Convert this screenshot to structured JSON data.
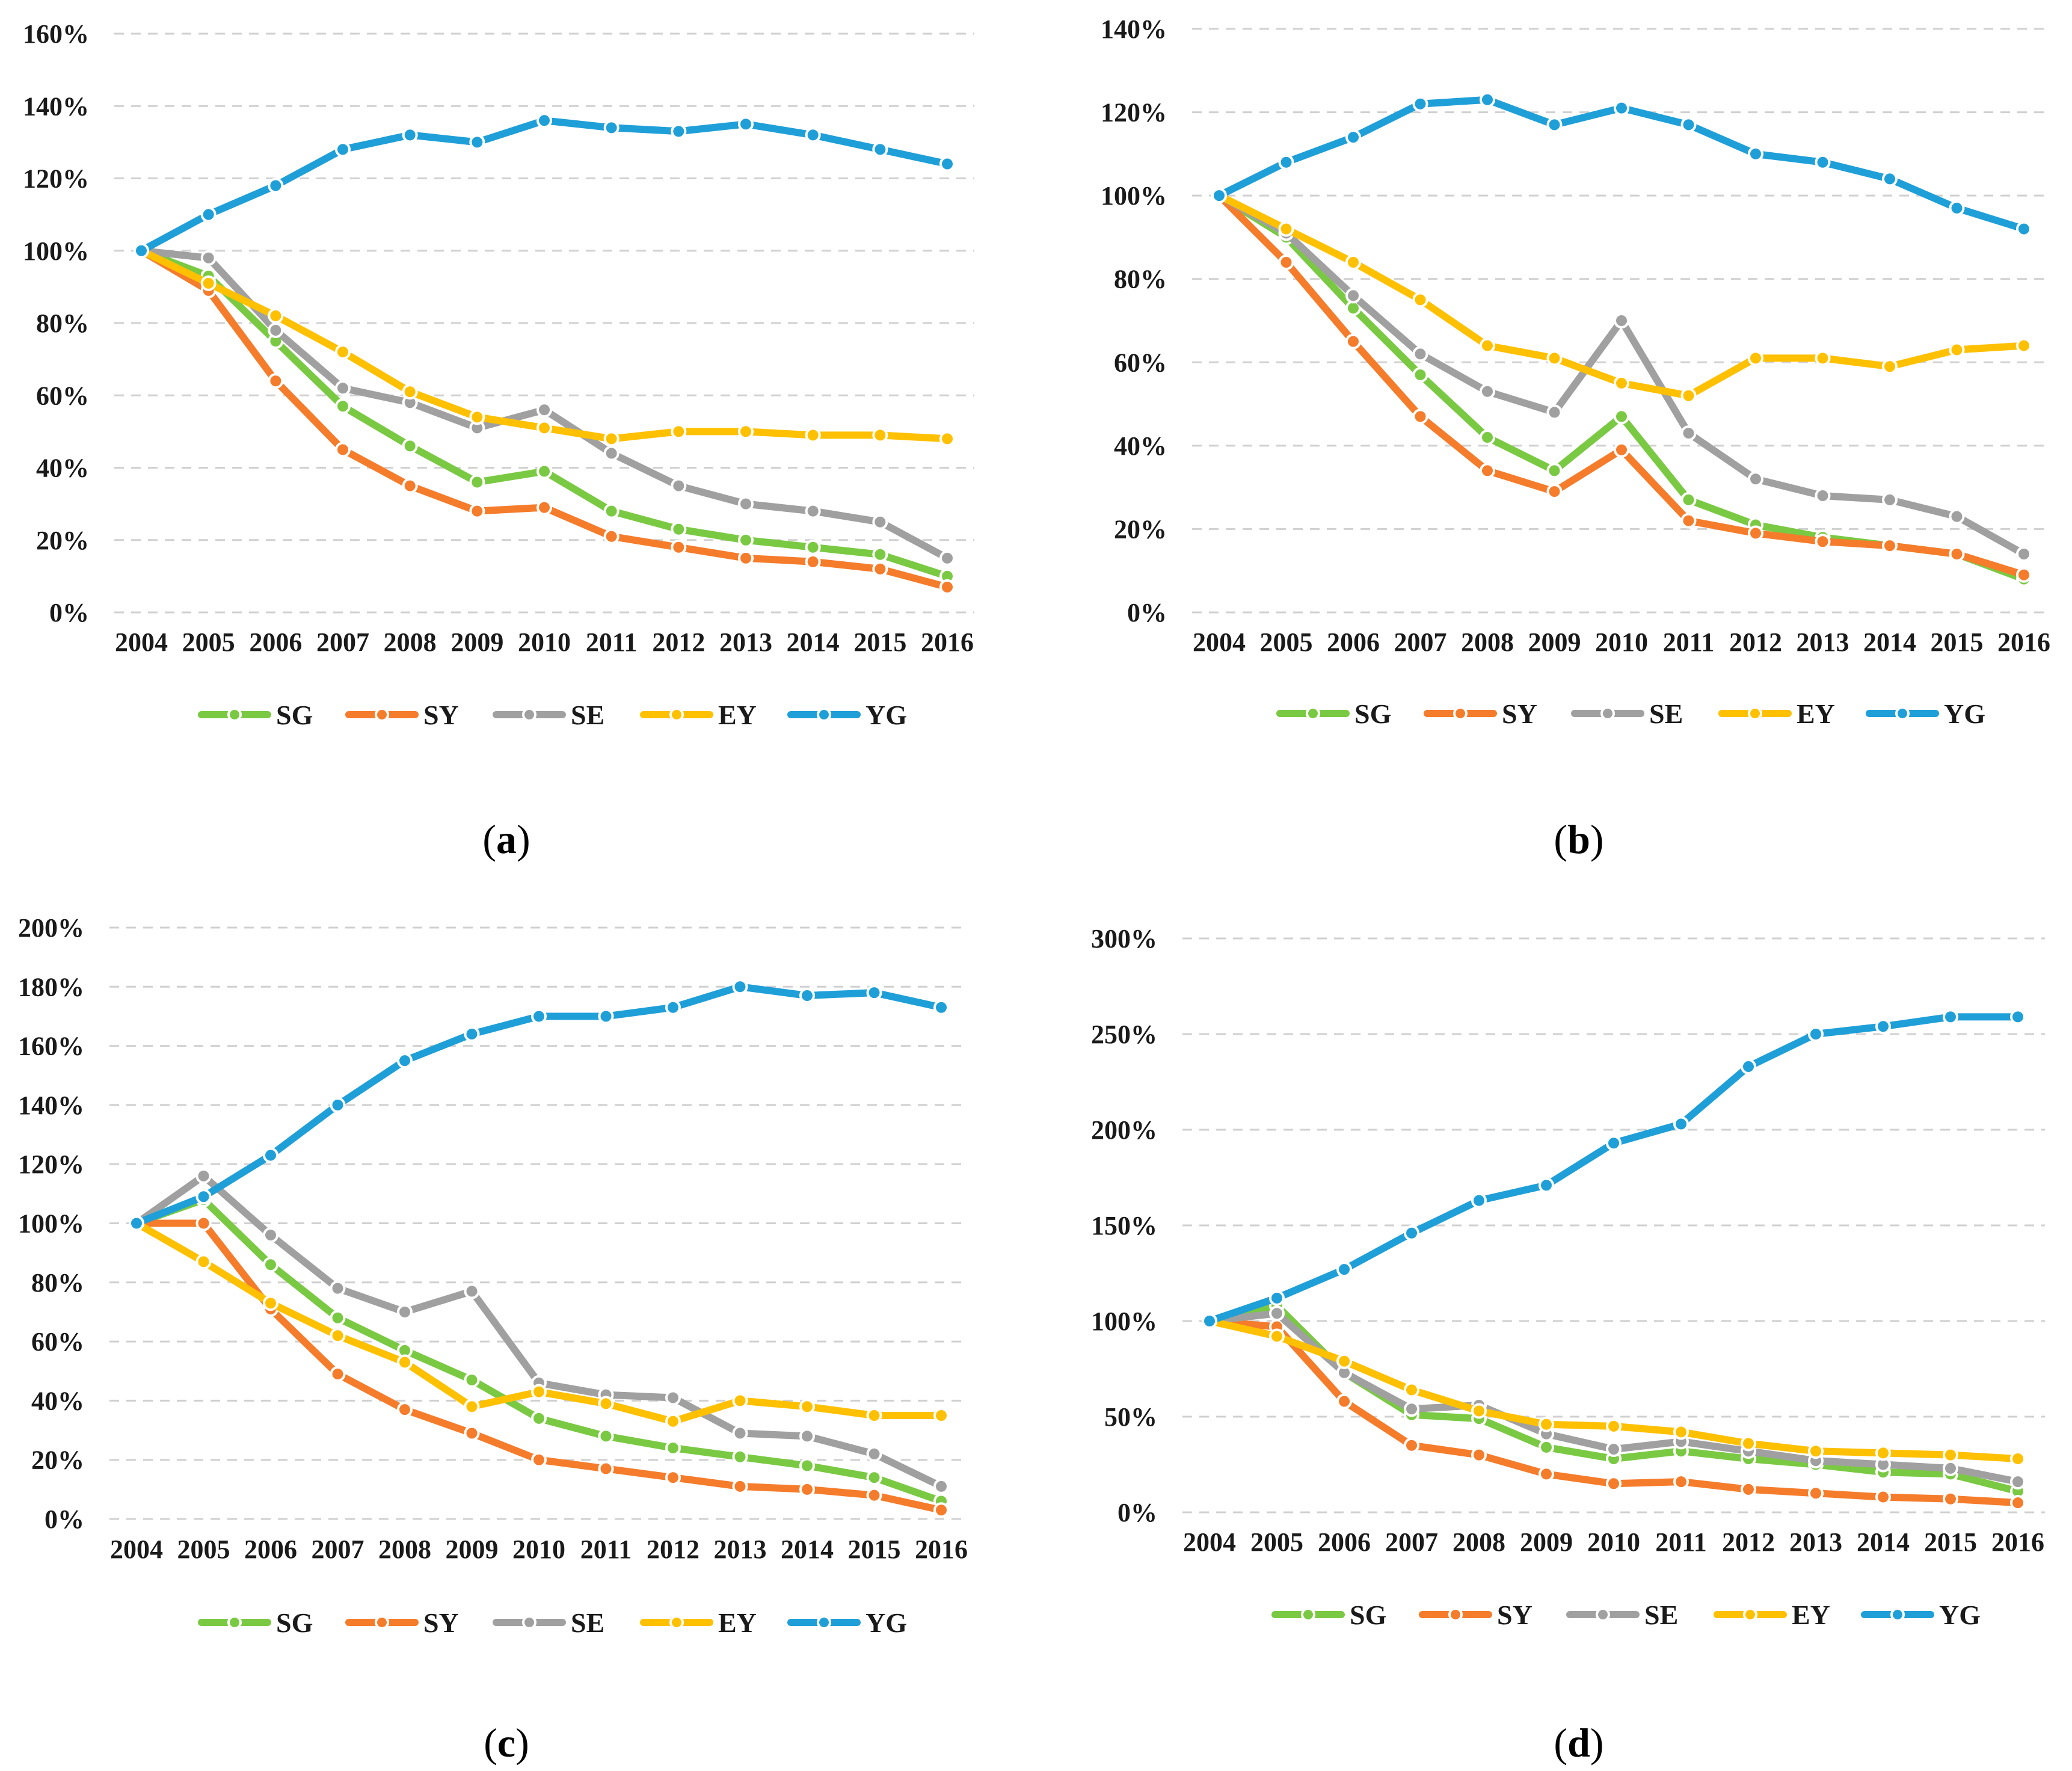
{
  "chart_data": [
    {
      "type": "line",
      "panel_label": "a",
      "x": [
        "2004",
        "2005",
        "2006",
        "2007",
        "2008",
        "2009",
        "2010",
        "2011",
        "2012",
        "2013",
        "2014",
        "2015",
        "2016"
      ],
      "ylim": [
        0,
        160
      ],
      "yticks": [
        0,
        20,
        40,
        60,
        80,
        100,
        120,
        140,
        160
      ],
      "ytick_labels": [
        "0%",
        "20%",
        "40%",
        "60%",
        "80%",
        "100%",
        "120%",
        "140%",
        "160%"
      ],
      "legend_position": "bottom",
      "grid": true,
      "series": [
        {
          "name": "SG",
          "color": "#7ac943",
          "values": [
            100,
            93,
            75,
            57,
            46,
            36,
            39,
            28,
            23,
            20,
            18,
            16,
            10
          ]
        },
        {
          "name": "SY",
          "color": "#f57c2b",
          "values": [
            100,
            89,
            64,
            45,
            35,
            28,
            29,
            21,
            18,
            15,
            14,
            12,
            7
          ]
        },
        {
          "name": "SE",
          "color": "#a0a0a0",
          "values": [
            100,
            98,
            78,
            62,
            58,
            51,
            56,
            44,
            35,
            30,
            28,
            25,
            15
          ]
        },
        {
          "name": "EY",
          "color": "#ffc000",
          "values": [
            100,
            91,
            82,
            72,
            61,
            54,
            51,
            48,
            50,
            50,
            49,
            49,
            48
          ]
        },
        {
          "name": "YG",
          "color": "#1f9fd8",
          "values": [
            100,
            110,
            118,
            128,
            132,
            130,
            136,
            134,
            133,
            135,
            132,
            128,
            124
          ]
        }
      ]
    },
    {
      "type": "line",
      "panel_label": "b",
      "x": [
        "2004",
        "2005",
        "2006",
        "2007",
        "2008",
        "2009",
        "2010",
        "2011",
        "2012",
        "2013",
        "2014",
        "2015",
        "2016"
      ],
      "ylim": [
        0,
        140
      ],
      "yticks": [
        0,
        20,
        40,
        60,
        80,
        100,
        120,
        140
      ],
      "ytick_labels": [
        "0%",
        "20%",
        "40%",
        "60%",
        "80%",
        "100%",
        "120%",
        "140%"
      ],
      "legend_position": "bottom",
      "grid": true,
      "series": [
        {
          "name": "SG",
          "color": "#7ac943",
          "values": [
            100,
            90,
            73,
            57,
            42,
            34,
            47,
            27,
            21,
            18,
            16,
            14,
            8
          ]
        },
        {
          "name": "SY",
          "color": "#f57c2b",
          "values": [
            100,
            84,
            65,
            47,
            34,
            29,
            39,
            22,
            19,
            17,
            16,
            14,
            9
          ]
        },
        {
          "name": "SE",
          "color": "#a0a0a0",
          "values": [
            100,
            91,
            76,
            62,
            53,
            48,
            70,
            43,
            32,
            28,
            27,
            23,
            14
          ]
        },
        {
          "name": "EY",
          "color": "#ffc000",
          "values": [
            100,
            92,
            84,
            75,
            64,
            61,
            55,
            52,
            61,
            61,
            59,
            63,
            64
          ]
        },
        {
          "name": "YG",
          "color": "#1f9fd8",
          "values": [
            100,
            108,
            114,
            122,
            123,
            117,
            121,
            117,
            110,
            108,
            104,
            97,
            92
          ]
        }
      ]
    },
    {
      "type": "line",
      "panel_label": "c",
      "x": [
        "2004",
        "2005",
        "2006",
        "2007",
        "2008",
        "2009",
        "2010",
        "2011",
        "2012",
        "2013",
        "2014",
        "2015",
        "2016"
      ],
      "ylim": [
        0,
        200
      ],
      "yticks": [
        0,
        20,
        40,
        60,
        80,
        100,
        120,
        140,
        160,
        180,
        200
      ],
      "ytick_labels": [
        "0%",
        "20%",
        "40%",
        "60%",
        "80%",
        "100%",
        "120%",
        "140%",
        "160%",
        "180%",
        "200%"
      ],
      "legend_position": "bottom",
      "grid": true,
      "series": [
        {
          "name": "SG",
          "color": "#7ac943",
          "values": [
            100,
            108,
            86,
            68,
            57,
            47,
            34,
            28,
            24,
            21,
            18,
            14,
            6
          ]
        },
        {
          "name": "SY",
          "color": "#f57c2b",
          "values": [
            100,
            100,
            71,
            49,
            37,
            29,
            20,
            17,
            14,
            11,
            10,
            8,
            3
          ]
        },
        {
          "name": "SE",
          "color": "#a0a0a0",
          "values": [
            100,
            116,
            96,
            78,
            70,
            77,
            46,
            42,
            41,
            29,
            28,
            22,
            11
          ]
        },
        {
          "name": "EY",
          "color": "#ffc000",
          "values": [
            100,
            87,
            73,
            62,
            53,
            38,
            43,
            39,
            33,
            40,
            38,
            35,
            35
          ]
        },
        {
          "name": "YG",
          "color": "#1f9fd8",
          "values": [
            100,
            109,
            123,
            140,
            155,
            164,
            170,
            170,
            173,
            180,
            177,
            178,
            173
          ]
        }
      ]
    },
    {
      "type": "line",
      "panel_label": "d",
      "x": [
        "2004",
        "2005",
        "2006",
        "2007",
        "2008",
        "2009",
        "2010",
        "2011",
        "2012",
        "2013",
        "2014",
        "2015",
        "2016"
      ],
      "ylim": [
        0,
        300
      ],
      "yticks": [
        0,
        50,
        100,
        150,
        200,
        250,
        300
      ],
      "ytick_labels": [
        "0%",
        "50%",
        "100%",
        "150%",
        "200%",
        "250%",
        "300%"
      ],
      "legend_position": "bottom",
      "grid": true,
      "series": [
        {
          "name": "SG",
          "color": "#7ac943",
          "values": [
            100,
            108,
            73,
            51,
            49,
            34,
            28,
            32,
            28,
            25,
            21,
            20,
            11
          ]
        },
        {
          "name": "SY",
          "color": "#f57c2b",
          "values": [
            100,
            97,
            58,
            35,
            30,
            20,
            15,
            16,
            12,
            10,
            8,
            7,
            5
          ]
        },
        {
          "name": "SE",
          "color": "#a0a0a0",
          "values": [
            100,
            104,
            73,
            54,
            56,
            41,
            33,
            37,
            32,
            27,
            25,
            23,
            16
          ]
        },
        {
          "name": "EY",
          "color": "#ffc000",
          "values": [
            100,
            92,
            79,
            64,
            53,
            46,
            45,
            42,
            36,
            32,
            31,
            30,
            28
          ]
        },
        {
          "name": "YG",
          "color": "#1f9fd8",
          "values": [
            100,
            112,
            127,
            146,
            163,
            171,
            193,
            203,
            233,
            250,
            254,
            259,
            259
          ]
        }
      ]
    }
  ]
}
